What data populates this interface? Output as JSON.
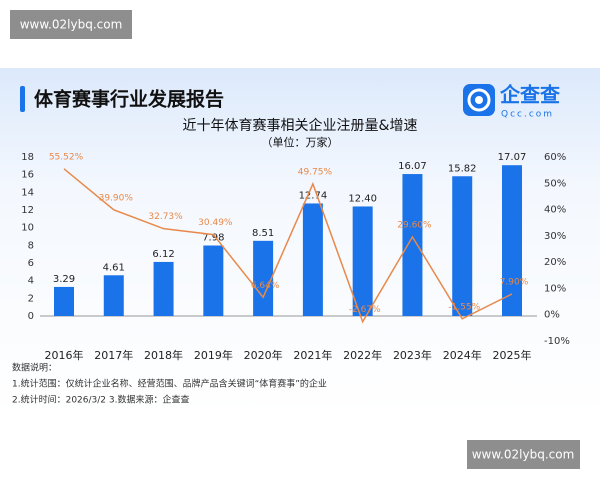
{
  "watermark_top": "www.02lybq.com",
  "watermark_bottom": "www.02lybq.com",
  "header_title": "体育赛事行业发展报告",
  "logo_name": "企查查",
  "logo_domain": "Qcc.com",
  "chart_data": {
    "type": "bar-line",
    "title": "近十年体育赛事相关企业注册量&增速",
    "subtitle": "（单位：万家）",
    "categories": [
      "2016年",
      "2017年",
      "2018年",
      "2019年",
      "2020年",
      "2021年",
      "2022年",
      "2023年",
      "2024年",
      "2025年"
    ],
    "series": [
      {
        "type": "bar",
        "color": "#1a73e8",
        "axis": "y",
        "values": [
          3.29,
          4.61,
          6.12,
          7.98,
          8.51,
          12.74,
          12.4,
          16.07,
          15.82,
          17.07
        ],
        "value_labels": [
          "3.29",
          "4.61",
          "6.12",
          "7.98",
          "8.51",
          "12.74",
          "12.40",
          "16.07",
          "15.82",
          "17.07"
        ]
      },
      {
        "type": "line",
        "color": "#e8894a",
        "axis": "y2",
        "values": [
          55.52,
          39.9,
          32.73,
          30.49,
          6.64,
          49.75,
          -2.67,
          29.6,
          -1.55,
          7.9
        ],
        "value_labels": [
          "55.52%",
          "39.90%",
          "32.73%",
          "30.49%",
          "6.64%",
          "49.75%",
          "-2.67%",
          "29.60%",
          "-1.55%",
          "7.90%"
        ]
      }
    ],
    "ylim": [
      0,
      18
    ],
    "yticks": [
      0,
      2,
      4,
      6,
      8,
      10,
      12,
      14,
      16,
      18
    ],
    "y2lim": [
      -10,
      60
    ],
    "y2ticks": [
      {
        "value": -10,
        "label": "-10%"
      },
      {
        "value": 0,
        "label": "0%"
      },
      {
        "value": 10,
        "label": "10%"
      },
      {
        "value": 20,
        "label": "20%"
      },
      {
        "value": 30,
        "label": "30%"
      },
      {
        "value": 40,
        "label": "40%"
      },
      {
        "value": 50,
        "label": "50%"
      },
      {
        "value": 60,
        "label": "60%"
      }
    ]
  },
  "notes": [
    "数据说明：",
    "1.统计范围：仅统计企业名称、经营范围、品牌产品含关键词“体育赛事”的企业",
    "2.统计时间：2026/3/2 3.数据来源：企查查"
  ]
}
